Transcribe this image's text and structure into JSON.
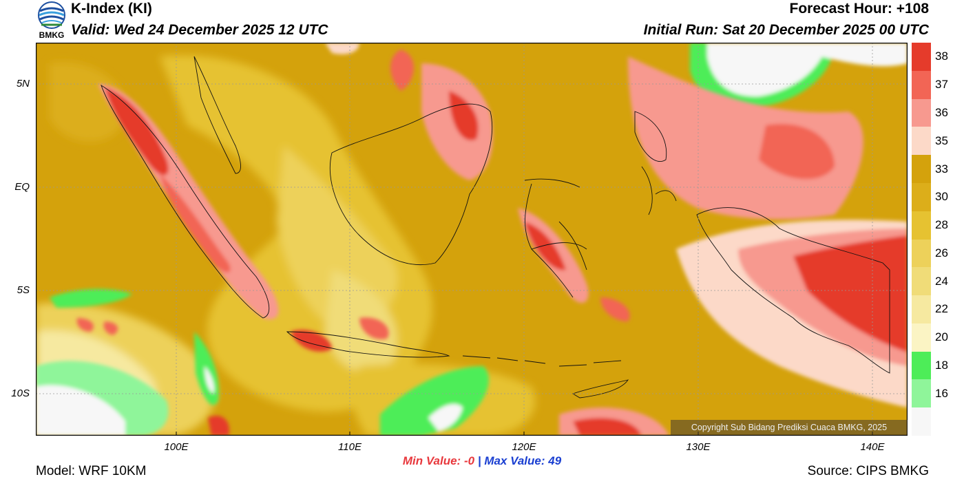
{
  "header": {
    "title": "K-Index (KI)",
    "valid": "Valid: Wed 24 December 2025 12 UTC",
    "forecast_hour": "Forecast Hour: +108",
    "initial_run": "Initial Run: Sat 20 December 2025 00 UTC",
    "logo_text": "BMKG"
  },
  "map": {
    "lat_labels": [
      "5N",
      "EQ",
      "5S",
      "10S"
    ],
    "lon_labels": [
      "100E",
      "110E",
      "120E",
      "130E",
      "140E"
    ],
    "copyright": "Copyright Sub Bidang Prediksi Cuaca BMKG, 2025"
  },
  "colorbar": {
    "levels": [
      {
        "label": "38",
        "color": "#e53b2b"
      },
      {
        "label": "37",
        "color": "#f26555"
      },
      {
        "label": "36",
        "color": "#f7998f"
      },
      {
        "label": "35",
        "color": "#fcd9c8"
      },
      {
        "label": "33",
        "color": "#d4a20c"
      },
      {
        "label": "30",
        "color": "#dcae1a"
      },
      {
        "label": "28",
        "color": "#e6c231"
      },
      {
        "label": "26",
        "color": "#edd15a"
      },
      {
        "label": "24",
        "color": "#f0dc78"
      },
      {
        "label": "22",
        "color": "#f6e9a0"
      },
      {
        "label": "20",
        "color": "#fbf4c4"
      },
      {
        "label": "18",
        "color": "#4ded58"
      },
      {
        "label": "16",
        "color": "#8ff59a"
      },
      {
        "label": "",
        "color": "#f7f7f7"
      }
    ]
  },
  "stats": {
    "min_label": "Min Value:",
    "min_value": "-0",
    "separator": "|",
    "max_label": "Max Value:",
    "max_value": "49"
  },
  "footer": {
    "model": "Model: WRF 10KM",
    "source": "Source: CIPS BMKG"
  }
}
